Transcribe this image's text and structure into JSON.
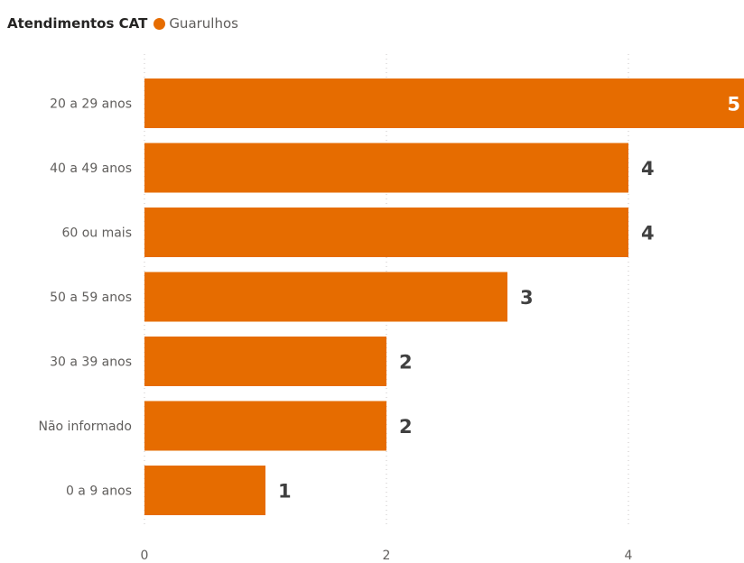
{
  "chart_data": {
    "type": "bar",
    "orientation": "horizontal",
    "title": "Atendimentos CAT",
    "categories": [
      "20 a 29 anos",
      "40 a 49 anos",
      "60 ou mais",
      "50 a 59 anos",
      "30 a 39 anos",
      "Não informado",
      "0 a 9 anos"
    ],
    "series": [
      {
        "name": "Guarulhos",
        "values": [
          5,
          4,
          4,
          3,
          2,
          2,
          1
        ],
        "color": "#E66C00"
      }
    ],
    "xlim": [
      0,
      5
    ],
    "xticks": [
      "0",
      "2",
      "4"
    ],
    "xlabel": "",
    "ylabel": "",
    "grid": true,
    "legend_position": "top-left",
    "data_labels": true
  },
  "colors": {
    "bar": "#E66C00",
    "label_outside": "#404040",
    "label_inside": "#ffffff"
  }
}
